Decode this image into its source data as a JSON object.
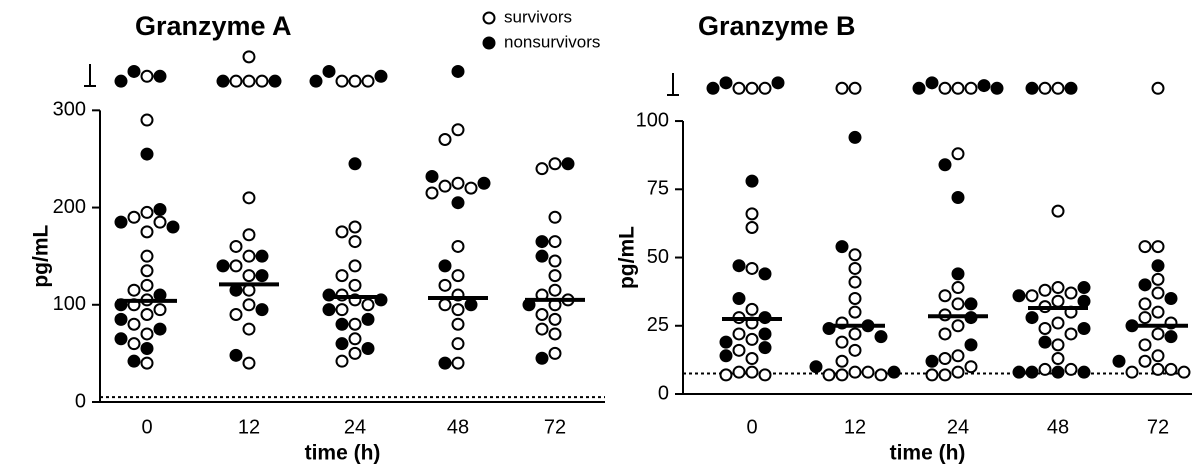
{
  "chart_data": [
    {
      "type": "dotplot",
      "title": "Granzyme A",
      "x_label": "time (h)",
      "y_label": "pg/mL",
      "categories": [
        "0",
        "12",
        "24",
        "48",
        "72"
      ],
      "ylim": [
        0,
        360
      ],
      "yticks": [
        0,
        100,
        200,
        300
      ],
      "series": [
        {
          "name": "survivors",
          "color": "#ffffff",
          "values": [
            [
              335,
              290,
              195,
              190,
              185,
              175,
              150,
              135,
              120,
              115,
              105,
              100,
              95,
              90,
              80,
              70,
              60,
              40
            ],
            [
              355,
              330,
              330,
              330,
              210,
              172,
              160,
              150,
              140,
              130,
              115,
              100,
              90,
              75,
              40
            ],
            [
              330,
              330,
              330,
              180,
              175,
              165,
              140,
              130,
              120,
              110,
              105,
              100,
              95,
              80,
              65,
              50,
              42
            ],
            [
              280,
              270,
              225,
              222,
              220,
              215,
              160,
              130,
              120,
              110,
              100,
              95,
              80,
              60,
              40
            ],
            [
              245,
              240,
              190,
              165,
              145,
              130,
              115,
              110,
              105,
              100,
              90,
              85,
              75,
              70,
              50
            ]
          ]
        },
        {
          "name": "nonsurvivors",
          "color": "#000000",
          "values": [
            [
              340,
              335,
              330,
              255,
              198,
              185,
              180,
              110,
              100,
              85,
              75,
              65,
              55,
              42
            ],
            [
              330,
              330,
              150,
              140,
              130,
              115,
              95,
              48
            ],
            [
              340,
              335,
              330,
              245,
              110,
              105,
              95,
              85,
              80,
              60,
              55
            ],
            [
              340,
              232,
              225,
              205,
              140,
              100,
              40
            ],
            [
              245,
              165,
              150,
              100,
              45
            ]
          ]
        }
      ],
      "medians": [
        104,
        121,
        108,
        107,
        105
      ],
      "detection_limit": 5
    },
    {
      "type": "dotplot",
      "title": "Granzyme B",
      "x_label": "time (h)",
      "y_label": "pg/mL",
      "categories": [
        "0",
        "12",
        "24",
        "48",
        "72"
      ],
      "ylim": [
        0,
        122
      ],
      "yticks": [
        0,
        25,
        50,
        75,
        100
      ],
      "series": [
        {
          "color": "#ffffff",
          "values": [
            [
              112,
              112,
              112,
              66,
              61,
              46,
              31,
              28,
              26,
              22,
              20,
              16,
              13,
              8,
              8,
              7,
              7
            ],
            [
              112,
              112,
              51,
              46,
              41,
              35,
              30,
              26,
              22,
              19,
              16,
              12,
              8,
              8,
              7,
              7,
              7
            ],
            [
              112,
              112,
              112,
              88,
              39,
              36,
              33,
              29,
              25,
              22,
              14,
              13,
              10,
              8,
              7,
              7
            ],
            [
              112,
              112,
              67,
              39,
              38,
              37,
              36,
              34,
              32,
              30,
              26,
              24,
              22,
              18,
              13,
              9,
              9
            ],
            [
              112,
              54,
              54,
              42,
              37,
              33,
              30,
              28,
              26,
              22,
              18,
              14,
              12,
              9,
              9,
              8,
              8
            ]
          ]
        },
        {
          "color": "#000000",
          "values": [
            [
              114,
              114,
              112,
              78,
              47,
              44,
              35,
              28,
              22,
              19,
              17,
              14
            ],
            [
              94,
              54,
              25,
              24,
              21,
              10,
              8
            ],
            [
              114,
              113,
              112,
              112,
              84,
              72,
              44,
              33,
              28,
              18,
              12
            ],
            [
              112,
              112,
              39,
              36,
              34,
              28,
              24,
              19,
              8,
              8,
              8,
              8
            ],
            [
              47,
              40,
              35,
              25,
              21,
              12
            ]
          ]
        }
      ],
      "medians": [
        27.5,
        25,
        28.5,
        31.5,
        25
      ],
      "detection_limit": 7.5
    }
  ]
}
